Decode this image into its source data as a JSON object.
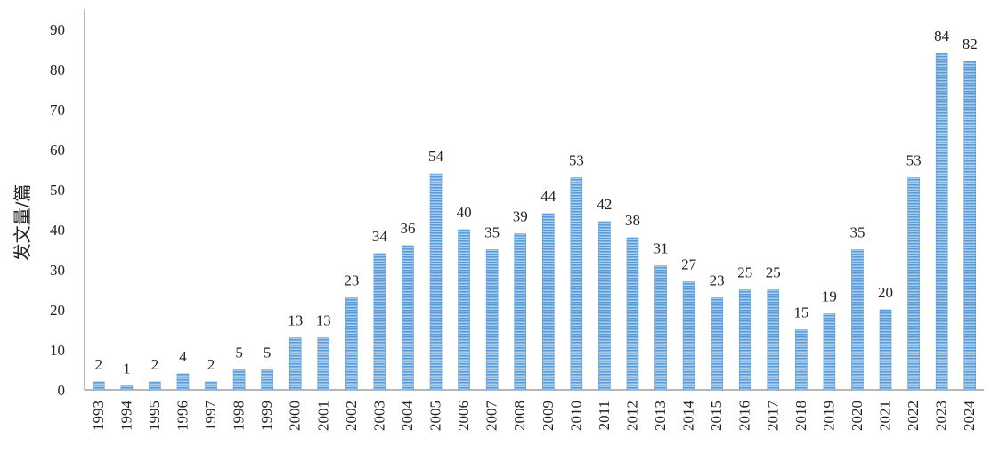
{
  "chart_data": {
    "type": "bar",
    "title": "",
    "xlabel": "",
    "ylabel": "发文量/篇",
    "ylim": [
      0,
      95
    ],
    "yticks": [
      0,
      10,
      20,
      30,
      40,
      50,
      60,
      70,
      80,
      90
    ],
    "grid": false,
    "bar_color": "#5b9bd5",
    "bar_stripe_color": "#a9cdee",
    "categories": [
      "1993",
      "1994",
      "1995",
      "1996",
      "1997",
      "1998",
      "1999",
      "2000",
      "2001",
      "2002",
      "2003",
      "2004",
      "2005",
      "2006",
      "2007",
      "2008",
      "2009",
      "2010",
      "2011",
      "2012",
      "2013",
      "2014",
      "2015",
      "2016",
      "2017",
      "2018",
      "2019",
      "2020",
      "2021",
      "2022",
      "2023",
      "2024"
    ],
    "values": [
      2,
      1,
      2,
      4,
      2,
      5,
      5,
      13,
      13,
      23,
      34,
      36,
      54,
      40,
      35,
      39,
      44,
      53,
      42,
      38,
      31,
      27,
      23,
      25,
      25,
      15,
      19,
      35,
      20,
      53,
      84,
      82
    ]
  }
}
